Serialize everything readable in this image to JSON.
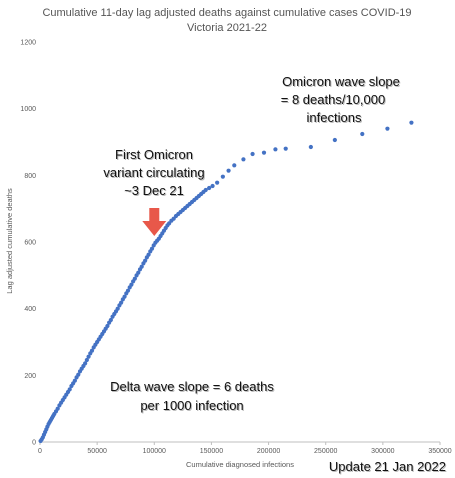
{
  "chart_data": {
    "type": "scatter",
    "title": "Cumulative 11-day lag adjusted deaths against cumulative cases COVID-19",
    "subtitle": "Victoria 2021-22",
    "xlabel": "Cumulative diagnosed infections",
    "ylabel": "Lag adjusted cumulative deaths",
    "xlim": [
      0,
      350000
    ],
    "ylim": [
      0,
      1200
    ],
    "x_ticks": [
      "0",
      "50000",
      "100000",
      "150000",
      "200000",
      "250000",
      "300000",
      "350000"
    ],
    "y_ticks": [
      "0",
      "200",
      "400",
      "600",
      "800",
      "1000",
      "1200"
    ],
    "grid": false,
    "legend": "none",
    "series": [
      {
        "color": "#4472c4",
        "points": [
          [
            500,
            3
          ],
          [
            1500,
            8
          ],
          [
            2500,
            14
          ],
          [
            3500,
            22
          ],
          [
            4500,
            30
          ],
          [
            5500,
            38
          ],
          [
            6500,
            46
          ],
          [
            7500,
            54
          ],
          [
            8500,
            60
          ],
          [
            9500,
            66
          ],
          [
            10500,
            72
          ],
          [
            11500,
            78
          ],
          [
            12500,
            84
          ],
          [
            14000,
            92
          ],
          [
            15500,
            100
          ],
          [
            17000,
            110
          ],
          [
            18500,
            118
          ],
          [
            20000,
            126
          ],
          [
            21500,
            134
          ],
          [
            23000,
            142
          ],
          [
            24500,
            150
          ],
          [
            26000,
            158
          ],
          [
            27500,
            168
          ],
          [
            29000,
            176
          ],
          [
            30500,
            184
          ],
          [
            32000,
            194
          ],
          [
            33500,
            202
          ],
          [
            35000,
            212
          ],
          [
            36500,
            220
          ],
          [
            38000,
            228
          ],
          [
            39500,
            236
          ],
          [
            41000,
            246
          ],
          [
            42500,
            256
          ],
          [
            44000,
            266
          ],
          [
            45500,
            274
          ],
          [
            47000,
            284
          ],
          [
            48500,
            292
          ],
          [
            50000,
            300
          ],
          [
            51500,
            308
          ],
          [
            53000,
            316
          ],
          [
            54500,
            324
          ],
          [
            56000,
            332
          ],
          [
            57500,
            340
          ],
          [
            59000,
            348
          ],
          [
            60500,
            358
          ],
          [
            62000,
            366
          ],
          [
            63500,
            376
          ],
          [
            65000,
            384
          ],
          [
            66500,
            392
          ],
          [
            68000,
            400
          ],
          [
            69500,
            410
          ],
          [
            71000,
            418
          ],
          [
            72500,
            428
          ],
          [
            74000,
            436
          ],
          [
            75500,
            446
          ],
          [
            77000,
            454
          ],
          [
            78500,
            464
          ],
          [
            80000,
            472
          ],
          [
            81500,
            482
          ],
          [
            83000,
            490
          ],
          [
            84500,
            500
          ],
          [
            86000,
            508
          ],
          [
            87500,
            518
          ],
          [
            89000,
            526
          ],
          [
            90500,
            536
          ],
          [
            92000,
            544
          ],
          [
            93500,
            554
          ],
          [
            95000,
            562
          ],
          [
            96500,
            572
          ],
          [
            98000,
            580
          ],
          [
            99500,
            590
          ],
          [
            101000,
            598
          ],
          [
            102500,
            604
          ],
          [
            104000,
            610
          ],
          [
            105500,
            618
          ],
          [
            107000,
            626
          ],
          [
            108500,
            634
          ],
          [
            110000,
            642
          ],
          [
            111500,
            650
          ],
          [
            113000,
            656
          ],
          [
            115000,
            664
          ],
          [
            117000,
            670
          ],
          [
            119000,
            678
          ],
          [
            121000,
            684
          ],
          [
            123000,
            690
          ],
          [
            125000,
            696
          ],
          [
            127000,
            702
          ],
          [
            129000,
            708
          ],
          [
            131000,
            714
          ],
          [
            133000,
            720
          ],
          [
            135000,
            726
          ],
          [
            137000,
            732
          ],
          [
            139000,
            738
          ],
          [
            141000,
            744
          ],
          [
            143000,
            750
          ],
          [
            145000,
            756
          ],
          [
            148000,
            762
          ],
          [
            151000,
            768
          ],
          [
            155000,
            778
          ],
          [
            160000,
            796
          ],
          [
            165000,
            814
          ],
          [
            170000,
            830
          ],
          [
            178000,
            848
          ],
          [
            186000,
            864
          ],
          [
            196000,
            868
          ],
          [
            206000,
            878
          ],
          [
            215000,
            880
          ],
          [
            237000,
            885
          ],
          [
            258000,
            906
          ],
          [
            282000,
            924
          ],
          [
            304000,
            940
          ],
          [
            325000,
            958
          ]
        ]
      }
    ],
    "annotations": {
      "omicron_slope": [
        "Omicron wave slope",
        "= 8 deaths/10,000",
        "infections"
      ],
      "first_omicron": [
        "First Omicron",
        "variant circulating",
        "~3 Dec 21"
      ],
      "delta_slope": [
        "Delta wave slope = 6 deaths",
        "per 1000 infection"
      ],
      "update": "Update 21 Jan 2022",
      "arrow_color": "#e8584a",
      "arrow_points_to": [
        100000,
        618
      ]
    }
  }
}
